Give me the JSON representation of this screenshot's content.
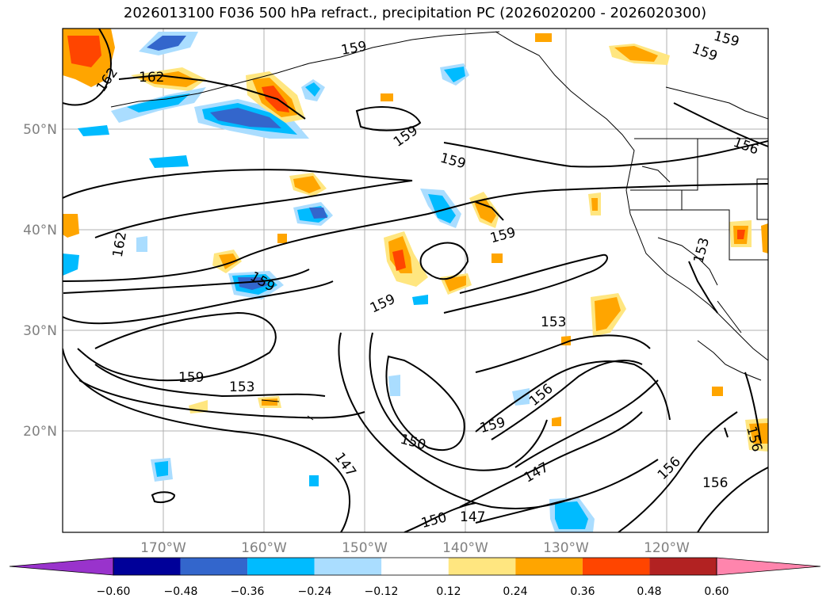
{
  "title": "2026013100 F036 500 hPa refract., precipitation PC (2026020200 - 2026020300)",
  "lat_labels": [
    "50°N",
    "40°N",
    "30°N",
    "20°N"
  ],
  "lon_labels": [
    "170°W",
    "160°W",
    "150°W",
    "140°W",
    "130°W",
    "120°W"
  ],
  "contour_labels": [
    "162",
    "162",
    "159",
    "159",
    "159",
    "159",
    "156",
    "162",
    "159",
    "159",
    "159",
    "153",
    "159",
    "153",
    "153",
    "156",
    "159",
    "150",
    "147",
    "147",
    "150",
    "147",
    "156",
    "156",
    "156",
    "159"
  ],
  "colorbar": {
    "ticks": [
      "−0.60",
      "−0.48",
      "−0.36",
      "−0.24",
      "−0.12",
      "0.12",
      "0.24",
      "0.36",
      "0.48",
      "0.60"
    ],
    "colors": [
      "#9933cc",
      "#000099",
      "#3366cc",
      "#00bbff",
      "#aaddff",
      "#ffffff",
      "#ffe680",
      "#ffa500",
      "#ff4500",
      "#b22222",
      "#ff85ad"
    ]
  }
}
